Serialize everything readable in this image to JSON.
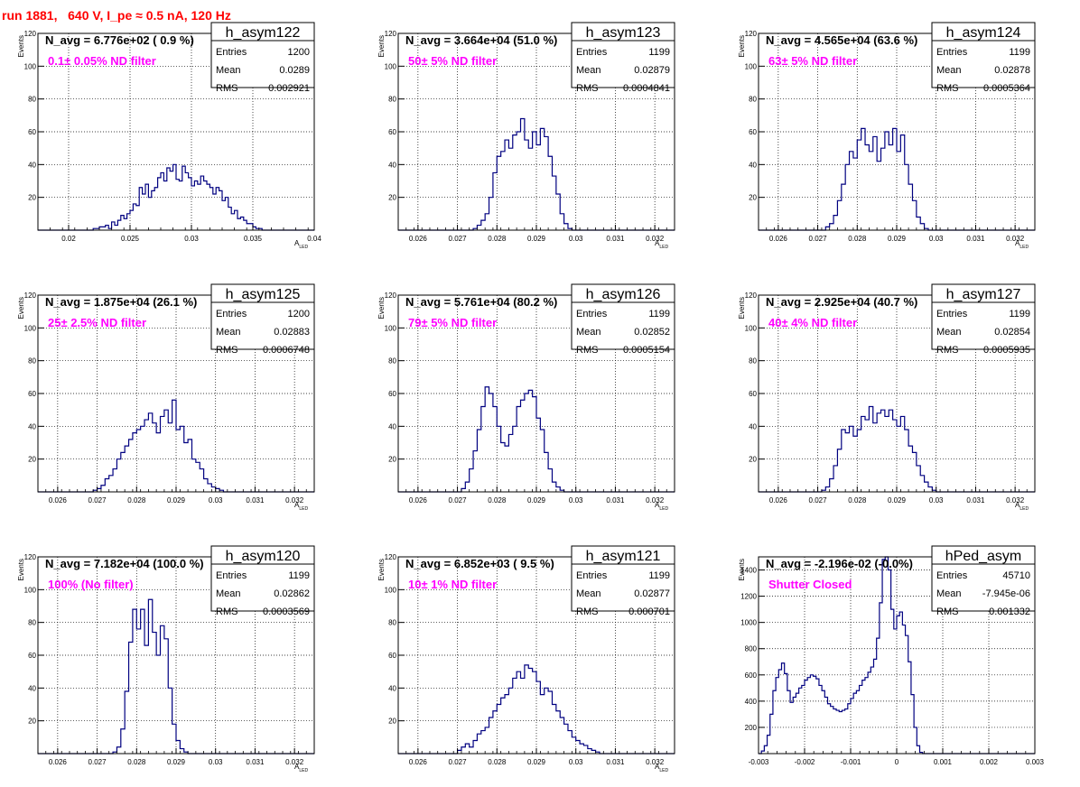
{
  "title": "run 1881,   640 V, I_pe ≈ 0.5 nA, 120 Hz",
  "colors": {
    "title": "#ff0000",
    "annotation": "#ff00ff",
    "histogram": "#000080",
    "frame": "#000000"
  },
  "stats_labels": [
    "Entries",
    "Mean",
    "RMS"
  ],
  "chart_data": [
    {
      "type": "histogram",
      "name": "h_asym122",
      "title": "N_avg = 6.776e+02 ( 0.9 %)",
      "annotation": "0.1± 0.05% ND filter",
      "xlabel": "A_LED",
      "ylabel": "Events",
      "xlim": [
        0.0175,
        0.04
      ],
      "ylim": [
        0,
        120
      ],
      "xticks": [
        0.02,
        0.025,
        0.03,
        0.035,
        0.04
      ],
      "xtick_labels": [
        "0.02",
        "0.025",
        "0.03",
        "0.035",
        "0.04"
      ],
      "yticks": [
        20,
        40,
        60,
        80,
        100,
        120
      ],
      "grid": true,
      "stats": {
        "Entries": "1200",
        "Mean": "0.0289",
        "RMS": "0.002921"
      },
      "bins": {
        "start": 0.0175,
        "width": 0.00025,
        "values": [
          0,
          0,
          0,
          0,
          0,
          0,
          0,
          0,
          0,
          0,
          0,
          0,
          0,
          0,
          0,
          0,
          0,
          0,
          1,
          1,
          2,
          2,
          3,
          1,
          5,
          3,
          6,
          9,
          7,
          10,
          12,
          16,
          15,
          26,
          22,
          28,
          20,
          24,
          26,
          32,
          35,
          30,
          38,
          36,
          40,
          31,
          30,
          39,
          35,
          32,
          27,
          30,
          28,
          33,
          30,
          28,
          26,
          22,
          26,
          24,
          18,
          20,
          14,
          10,
          12,
          7,
          8,
          6,
          4,
          4,
          2,
          1,
          1,
          0,
          0,
          0,
          0,
          0,
          0,
          0,
          0,
          0,
          0,
          0,
          0,
          0,
          0,
          0,
          0,
          0
        ]
      }
    },
    {
      "type": "histogram",
      "name": "h_asym123",
      "title": "N_avg = 3.664e+04 (51.0 %)",
      "annotation": "50± 5% ND filter",
      "xlabel": "A_LED",
      "ylabel": "Events",
      "xlim": [
        0.0255,
        0.0325
      ],
      "ylim": [
        0,
        120
      ],
      "xticks": [
        0.026,
        0.027,
        0.028,
        0.029,
        0.03,
        0.031,
        0.032
      ],
      "xtick_labels": [
        "0.026",
        "0.027",
        "0.028",
        "0.029",
        "0.03",
        "0.031",
        "0.032"
      ],
      "yticks": [
        20,
        40,
        60,
        80,
        100,
        120
      ],
      "grid": true,
      "stats": {
        "Entries": "1199",
        "Mean": "0.02879",
        "RMS": "0.0004841"
      },
      "bins": {
        "start": 0.0255,
        "width": 0.0001,
        "values": [
          0,
          0,
          0,
          0,
          0,
          0,
          0,
          0,
          0,
          0,
          0,
          0,
          0,
          0,
          0,
          0,
          0,
          0,
          0,
          1,
          3,
          6,
          10,
          20,
          35,
          45,
          48,
          55,
          50,
          58,
          60,
          68,
          55,
          50,
          60,
          52,
          62,
          57,
          45,
          33,
          22,
          10,
          4,
          1,
          0,
          0,
          0,
          0,
          0,
          0,
          0,
          0,
          0,
          0,
          0,
          0,
          0,
          0,
          0,
          0,
          0,
          0,
          0,
          0,
          0,
          0,
          0,
          0,
          0,
          0
        ]
      }
    },
    {
      "type": "histogram",
      "name": "h_asym124",
      "title": "N_avg = 4.565e+04 (63.6 %)",
      "annotation": "63± 5% ND filter",
      "xlabel": "A_LED",
      "ylabel": "Events",
      "xlim": [
        0.0255,
        0.0325
      ],
      "ylim": [
        0,
        120
      ],
      "xticks": [
        0.026,
        0.027,
        0.028,
        0.029,
        0.03,
        0.031,
        0.032
      ],
      "xtick_labels": [
        "0.026",
        "0.027",
        "0.028",
        "0.029",
        "0.03",
        "0.031",
        "0.032"
      ],
      "yticks": [
        20,
        40,
        60,
        80,
        100,
        120
      ],
      "grid": true,
      "stats": {
        "Entries": "1199",
        "Mean": "0.02878",
        "RMS": "0.0005364"
      },
      "bins": {
        "start": 0.0255,
        "width": 0.0001,
        "values": [
          0,
          0,
          0,
          0,
          0,
          0,
          0,
          0,
          0,
          0,
          0,
          0,
          0,
          0,
          0,
          0,
          0,
          2,
          4,
          9,
          18,
          28,
          40,
          48,
          44,
          55,
          62,
          52,
          48,
          57,
          42,
          50,
          60,
          52,
          62,
          48,
          58,
          40,
          28,
          18,
          8,
          4,
          1,
          0,
          0,
          0,
          0,
          0,
          0,
          0,
          0,
          0,
          0,
          0,
          0,
          0,
          0,
          0,
          0,
          0,
          0,
          0,
          0,
          0,
          0,
          0,
          0,
          0,
          0,
          0
        ]
      }
    },
    {
      "type": "histogram",
      "name": "h_asym125",
      "title": "N_avg = 1.875e+04 (26.1 %)",
      "annotation": "25± 2.5% ND filter",
      "xlabel": "A_LED",
      "ylabel": "Events",
      "xlim": [
        0.0255,
        0.0325
      ],
      "ylim": [
        0,
        120
      ],
      "xticks": [
        0.026,
        0.027,
        0.028,
        0.029,
        0.03,
        0.031,
        0.032
      ],
      "xtick_labels": [
        "0.026",
        "0.027",
        "0.028",
        "0.029",
        "0.03",
        "0.031",
        "0.032"
      ],
      "yticks": [
        20,
        40,
        60,
        80,
        100,
        120
      ],
      "grid": true,
      "stats": {
        "Entries": "1200",
        "Mean": "0.02883",
        "RMS": "0.0006748"
      },
      "bins": {
        "start": 0.0255,
        "width": 0.0001,
        "values": [
          0,
          0,
          0,
          0,
          0,
          0,
          0,
          0,
          0,
          0,
          0,
          0,
          0,
          0,
          1,
          2,
          4,
          8,
          10,
          14,
          20,
          24,
          28,
          32,
          36,
          38,
          40,
          44,
          48,
          42,
          36,
          46,
          50,
          42,
          56,
          38,
          40,
          30,
          32,
          20,
          18,
          14,
          8,
          5,
          3,
          2,
          1,
          0,
          0,
          0,
          0,
          0,
          0,
          0,
          0,
          0,
          0,
          0,
          0,
          0,
          0,
          0,
          0,
          0,
          0,
          0,
          0,
          0,
          0,
          0
        ]
      }
    },
    {
      "type": "histogram",
      "name": "h_asym126",
      "title": "N_avg = 5.761e+04 (80.2 %)",
      "annotation": "79± 5% ND filter",
      "xlabel": "A_LED",
      "ylabel": "Events",
      "xlim": [
        0.0255,
        0.0325
      ],
      "ylim": [
        0,
        120
      ],
      "xticks": [
        0.026,
        0.027,
        0.028,
        0.029,
        0.03,
        0.031,
        0.032
      ],
      "xtick_labels": [
        "0.026",
        "0.027",
        "0.028",
        "0.029",
        "0.03",
        "0.031",
        "0.032"
      ],
      "yticks": [
        20,
        40,
        60,
        80,
        100,
        120
      ],
      "grid": true,
      "stats": {
        "Entries": "1199",
        "Mean": "0.02852",
        "RMS": "0.0005154"
      },
      "bins": {
        "start": 0.0255,
        "width": 0.0001,
        "values": [
          0,
          0,
          0,
          0,
          0,
          0,
          0,
          0,
          0,
          0,
          0,
          0,
          0,
          0,
          0,
          0,
          2,
          6,
          14,
          25,
          38,
          52,
          64,
          60,
          52,
          40,
          30,
          28,
          35,
          40,
          52,
          56,
          60,
          62,
          58,
          45,
          38,
          24,
          14,
          6,
          3,
          1,
          0,
          0,
          0,
          0,
          0,
          0,
          0,
          0,
          0,
          0,
          0,
          0,
          0,
          0,
          0,
          0,
          0,
          0,
          0,
          0,
          0,
          0,
          0,
          0,
          0,
          0,
          0,
          0
        ]
      }
    },
    {
      "type": "histogram",
      "name": "h_asym127",
      "title": "N_avg = 2.925e+04 (40.7 %)",
      "annotation": "40± 4% ND filter",
      "xlabel": "A_LED",
      "ylabel": "Events",
      "xlim": [
        0.0255,
        0.0325
      ],
      "ylim": [
        0,
        120
      ],
      "xticks": [
        0.026,
        0.027,
        0.028,
        0.029,
        0.03,
        0.031,
        0.032
      ],
      "xtick_labels": [
        "0.026",
        "0.027",
        "0.028",
        "0.029",
        "0.03",
        "0.031",
        "0.032"
      ],
      "yticks": [
        20,
        40,
        60,
        80,
        100,
        120
      ],
      "grid": true,
      "stats": {
        "Entries": "1199",
        "Mean": "0.02854",
        "RMS": "0.0005935"
      },
      "bins": {
        "start": 0.0255,
        "width": 0.0001,
        "values": [
          0,
          0,
          0,
          0,
          0,
          0,
          0,
          0,
          0,
          0,
          0,
          0,
          0,
          0,
          0,
          0,
          1,
          3,
          8,
          16,
          26,
          38,
          36,
          40,
          34,
          38,
          46,
          44,
          52,
          42,
          48,
          50,
          46,
          50,
          44,
          40,
          46,
          38,
          28,
          24,
          16,
          10,
          6,
          3,
          1,
          0,
          0,
          0,
          0,
          0,
          0,
          0,
          0,
          0,
          0,
          0,
          0,
          0,
          0,
          0,
          0,
          0,
          0,
          0,
          0,
          0,
          0,
          0,
          0,
          0
        ]
      }
    },
    {
      "type": "histogram",
      "name": "h_asym120",
      "title": "N_avg = 7.182e+04 (100.0 %)",
      "annotation": "100% (No filter)",
      "xlabel": "A_LED",
      "ylabel": "Events",
      "xlim": [
        0.0255,
        0.0325
      ],
      "ylim": [
        0,
        120
      ],
      "xticks": [
        0.026,
        0.027,
        0.028,
        0.029,
        0.03,
        0.031,
        0.032
      ],
      "xtick_labels": [
        "0.026",
        "0.027",
        "0.028",
        "0.029",
        "0.03",
        "0.031",
        "0.032"
      ],
      "yticks": [
        20,
        40,
        60,
        80,
        100,
        120
      ],
      "grid": true,
      "stats": {
        "Entries": "1199",
        "Mean": "0.02862",
        "RMS": "0.0003569"
      },
      "bins": {
        "start": 0.0255,
        "width": 0.0001,
        "values": [
          0,
          0,
          0,
          0,
          0,
          0,
          0,
          0,
          0,
          0,
          0,
          0,
          0,
          0,
          0,
          0,
          0,
          0,
          0,
          1,
          4,
          15,
          38,
          68,
          88,
          76,
          88,
          66,
          94,
          74,
          60,
          78,
          70,
          40,
          18,
          8,
          3,
          1,
          0,
          0,
          0,
          0,
          0,
          0,
          0,
          0,
          0,
          0,
          0,
          0,
          0,
          0,
          0,
          0,
          0,
          0,
          0,
          0,
          0,
          0,
          0,
          0,
          0,
          0,
          0,
          0,
          0,
          0,
          0,
          0
        ]
      }
    },
    {
      "type": "histogram",
      "name": "h_asym121",
      "title": "N_avg = 6.852e+03 ( 9.5 %)",
      "annotation": "10± 1% ND filter",
      "xlabel": "A_LED",
      "ylabel": "Events",
      "xlim": [
        0.0255,
        0.0325
      ],
      "ylim": [
        0,
        120
      ],
      "xticks": [
        0.026,
        0.027,
        0.028,
        0.029,
        0.03,
        0.031,
        0.032
      ],
      "xtick_labels": [
        "0.026",
        "0.027",
        "0.028",
        "0.029",
        "0.03",
        "0.031",
        "0.032"
      ],
      "yticks": [
        20,
        40,
        60,
        80,
        100,
        120
      ],
      "grid": true,
      "stats": {
        "Entries": "1199",
        "Mean": "0.02877",
        "RMS": "0.000701"
      },
      "bins": {
        "start": 0.0255,
        "width": 0.0001,
        "values": [
          0,
          0,
          0,
          0,
          0,
          0,
          0,
          0,
          0,
          0,
          0,
          0,
          0,
          0,
          0,
          2,
          4,
          6,
          4,
          8,
          12,
          14,
          16,
          22,
          26,
          30,
          34,
          36,
          40,
          46,
          50,
          46,
          54,
          52,
          50,
          44,
          36,
          40,
          38,
          30,
          26,
          22,
          18,
          14,
          10,
          8,
          6,
          5,
          3,
          2,
          1,
          0,
          0,
          0,
          0,
          0,
          0,
          0,
          0,
          0,
          0,
          0,
          0,
          0,
          0,
          0,
          0,
          0,
          0,
          0
        ]
      }
    },
    {
      "type": "histogram",
      "name": "hPed_asym",
      "title": "N_avg = -2.196e-02 (-0.0%)",
      "annotation": "Shutter Closed",
      "xlabel": "",
      "ylabel": "Events",
      "xlim": [
        -0.003,
        0.003
      ],
      "ylim": [
        0,
        1500
      ],
      "xticks": [
        -0.003,
        -0.002,
        -0.001,
        0,
        0.001,
        0.002,
        0.003
      ],
      "xtick_labels": [
        "-0.003",
        "-0.002",
        "-0.001",
        "0",
        "0.001",
        "0.002",
        "0.003"
      ],
      "yticks": [
        200,
        400,
        600,
        800,
        1000,
        1200,
        1400
      ],
      "grid": true,
      "stats": {
        "Entries": "45710",
        "Mean": "-7.945e-06",
        "RMS": "0.001332"
      },
      "bins": {
        "start": -0.003,
        "width": 6.25e-05,
        "values": [
          0,
          20,
          60,
          140,
          300,
          480,
          580,
          640,
          690,
          610,
          480,
          390,
          430,
          460,
          500,
          520,
          560,
          580,
          600,
          590,
          570,
          520,
          480,
          430,
          380,
          360,
          340,
          330,
          320,
          330,
          340,
          380,
          420,
          460,
          480,
          520,
          560,
          580,
          620,
          660,
          720,
          880,
          1150,
          1480,
          1550,
          1400,
          1100,
          950,
          1050,
          1080,
          980,
          900,
          700,
          450,
          200,
          60,
          10,
          0,
          0,
          0,
          0,
          0,
          0,
          0,
          0,
          0,
          0,
          0,
          0,
          0,
          0,
          0,
          0,
          0,
          0,
          0,
          0,
          0,
          0,
          0,
          0,
          0,
          0,
          0,
          0,
          0,
          0,
          0,
          0,
          0,
          0,
          0,
          0,
          0,
          0,
          0
        ]
      }
    }
  ]
}
